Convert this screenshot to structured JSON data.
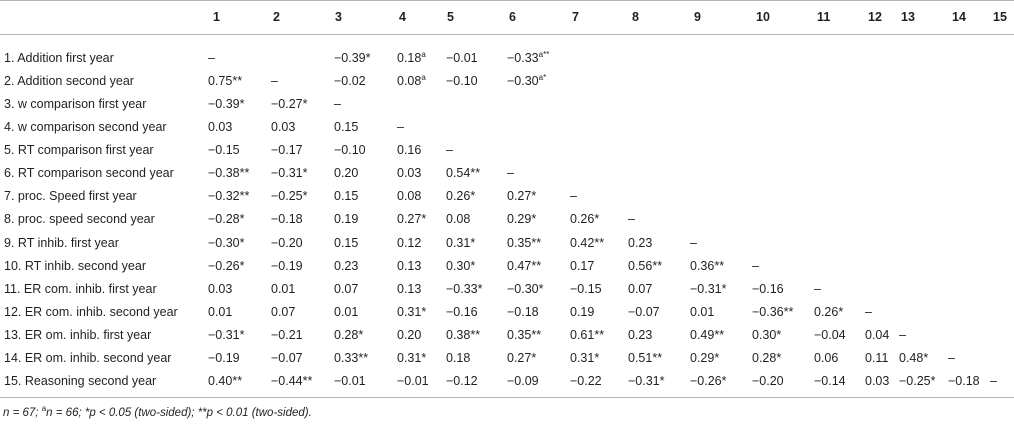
{
  "table": {
    "col_headers": [
      "1",
      "2",
      "3",
      "4",
      "5",
      "6",
      "7",
      "8",
      "9",
      "10",
      "11",
      "12",
      "13",
      "14",
      "15"
    ],
    "rows": [
      {
        "label": "1. Addition first year",
        "cells": [
          [
            "–",
            ""
          ],
          [
            "",
            ""
          ],
          [
            "−0.39*",
            ""
          ],
          [
            "0.18",
            "a"
          ],
          [
            "−0.01",
            ""
          ],
          [
            "−0.33",
            "a**"
          ],
          [
            "",
            ""
          ],
          [
            "",
            ""
          ],
          [
            "",
            ""
          ],
          [
            "",
            ""
          ],
          [
            "",
            ""
          ],
          [
            "",
            ""
          ],
          [
            "",
            ""
          ],
          [
            "",
            ""
          ],
          [
            "",
            ""
          ]
        ]
      },
      {
        "label": "2. Addition second year",
        "cells": [
          [
            "0.75**",
            ""
          ],
          [
            "–",
            ""
          ],
          [
            "−0.02",
            ""
          ],
          [
            "0.08",
            "a"
          ],
          [
            "−0.10",
            ""
          ],
          [
            "−0.30",
            "a*"
          ],
          [
            "",
            ""
          ],
          [
            "",
            ""
          ],
          [
            "",
            ""
          ],
          [
            "",
            ""
          ],
          [
            "",
            ""
          ],
          [
            "",
            ""
          ],
          [
            "",
            ""
          ],
          [
            "",
            ""
          ],
          [
            "",
            ""
          ]
        ]
      },
      {
        "label": "3. w comparison first year",
        "cells": [
          [
            "−0.39*",
            ""
          ],
          [
            "−0.27*",
            ""
          ],
          [
            "–",
            ""
          ],
          [
            "",
            ""
          ],
          [
            "",
            ""
          ],
          [
            "",
            ""
          ],
          [
            "",
            ""
          ],
          [
            "",
            ""
          ],
          [
            "",
            ""
          ],
          [
            "",
            ""
          ],
          [
            "",
            ""
          ],
          [
            "",
            ""
          ],
          [
            "",
            ""
          ],
          [
            "",
            ""
          ],
          [
            "",
            ""
          ]
        ]
      },
      {
        "label": "4. w comparison second year",
        "cells": [
          [
            "0.03",
            ""
          ],
          [
            "0.03",
            ""
          ],
          [
            "0.15",
            ""
          ],
          [
            "–",
            ""
          ],
          [
            "",
            ""
          ],
          [
            "",
            ""
          ],
          [
            "",
            ""
          ],
          [
            "",
            ""
          ],
          [
            "",
            ""
          ],
          [
            "",
            ""
          ],
          [
            "",
            ""
          ],
          [
            "",
            ""
          ],
          [
            "",
            ""
          ],
          [
            "",
            ""
          ],
          [
            "",
            ""
          ]
        ]
      },
      {
        "label": "5. RT comparison first year",
        "cells": [
          [
            "−0.15",
            ""
          ],
          [
            "−0.17",
            ""
          ],
          [
            "−0.10",
            ""
          ],
          [
            "0.16",
            ""
          ],
          [
            "–",
            ""
          ],
          [
            "",
            ""
          ],
          [
            "",
            ""
          ],
          [
            "",
            ""
          ],
          [
            "",
            ""
          ],
          [
            "",
            ""
          ],
          [
            "",
            ""
          ],
          [
            "",
            ""
          ],
          [
            "",
            ""
          ],
          [
            "",
            ""
          ],
          [
            "",
            ""
          ]
        ]
      },
      {
        "label": "6. RT comparison second year",
        "cells": [
          [
            "−0.38**",
            ""
          ],
          [
            "−0.31*",
            ""
          ],
          [
            "0.20",
            ""
          ],
          [
            "0.03",
            ""
          ],
          [
            "0.54**",
            ""
          ],
          [
            "–",
            ""
          ],
          [
            "",
            ""
          ],
          [
            "",
            ""
          ],
          [
            "",
            ""
          ],
          [
            "",
            ""
          ],
          [
            "",
            ""
          ],
          [
            "",
            ""
          ],
          [
            "",
            ""
          ],
          [
            "",
            ""
          ],
          [
            "",
            ""
          ]
        ]
      },
      {
        "label": "7. proc. Speed first year",
        "cells": [
          [
            "−0.32**",
            ""
          ],
          [
            "−0.25*",
            ""
          ],
          [
            "0.15",
            ""
          ],
          [
            "0.08",
            ""
          ],
          [
            "0.26*",
            ""
          ],
          [
            "0.27*",
            ""
          ],
          [
            "–",
            ""
          ],
          [
            "",
            ""
          ],
          [
            "",
            ""
          ],
          [
            "",
            ""
          ],
          [
            "",
            ""
          ],
          [
            "",
            ""
          ],
          [
            "",
            ""
          ],
          [
            "",
            ""
          ],
          [
            "",
            ""
          ]
        ]
      },
      {
        "label": "8. proc. speed second year",
        "cells": [
          [
            "−0.28*",
            ""
          ],
          [
            "−0.18",
            ""
          ],
          [
            "0.19",
            ""
          ],
          [
            "0.27*",
            ""
          ],
          [
            "0.08",
            ""
          ],
          [
            "0.29*",
            ""
          ],
          [
            "0.26*",
            ""
          ],
          [
            "–",
            ""
          ],
          [
            "",
            ""
          ],
          [
            "",
            ""
          ],
          [
            "",
            ""
          ],
          [
            "",
            ""
          ],
          [
            "",
            ""
          ],
          [
            "",
            ""
          ],
          [
            "",
            ""
          ]
        ]
      },
      {
        "label": "9. RT inhib. first year",
        "cells": [
          [
            "−0.30*",
            ""
          ],
          [
            "−0.20",
            ""
          ],
          [
            "0.15",
            ""
          ],
          [
            "0.12",
            ""
          ],
          [
            "0.31*",
            ""
          ],
          [
            "0.35**",
            ""
          ],
          [
            "0.42**",
            ""
          ],
          [
            "0.23",
            ""
          ],
          [
            "–",
            ""
          ],
          [
            "",
            ""
          ],
          [
            "",
            ""
          ],
          [
            "",
            ""
          ],
          [
            "",
            ""
          ],
          [
            "",
            ""
          ],
          [
            "",
            ""
          ]
        ]
      },
      {
        "label": "10. RT inhib. second year",
        "cells": [
          [
            "−0.26*",
            ""
          ],
          [
            "−0.19",
            ""
          ],
          [
            "0.23",
            ""
          ],
          [
            "0.13",
            ""
          ],
          [
            "0.30*",
            ""
          ],
          [
            "0.47**",
            ""
          ],
          [
            "0.17",
            ""
          ],
          [
            "0.56**",
            ""
          ],
          [
            "0.36**",
            ""
          ],
          [
            "–",
            ""
          ],
          [
            "",
            ""
          ],
          [
            "",
            ""
          ],
          [
            "",
            ""
          ],
          [
            "",
            ""
          ],
          [
            "",
            ""
          ]
        ]
      },
      {
        "label": "11. ER com. inhib. first year",
        "cells": [
          [
            "0.03",
            ""
          ],
          [
            "0.01",
            ""
          ],
          [
            "0.07",
            ""
          ],
          [
            "0.13",
            ""
          ],
          [
            "−0.33*",
            ""
          ],
          [
            "−0.30*",
            ""
          ],
          [
            "−0.15",
            ""
          ],
          [
            "0.07",
            ""
          ],
          [
            "−0.31*",
            ""
          ],
          [
            "−0.16",
            ""
          ],
          [
            "–",
            ""
          ],
          [
            "",
            ""
          ],
          [
            "",
            ""
          ],
          [
            "",
            ""
          ],
          [
            "",
            ""
          ]
        ]
      },
      {
        "label": "12. ER com. inhib. second year",
        "cells": [
          [
            "0.01",
            ""
          ],
          [
            "0.07",
            ""
          ],
          [
            "0.01",
            ""
          ],
          [
            "0.31*",
            ""
          ],
          [
            "−0.16",
            ""
          ],
          [
            "−0.18",
            ""
          ],
          [
            "0.19",
            ""
          ],
          [
            "−0.07",
            ""
          ],
          [
            "0.01",
            ""
          ],
          [
            "−0.36**",
            ""
          ],
          [
            "0.26*",
            ""
          ],
          [
            "–",
            ""
          ],
          [
            "",
            ""
          ],
          [
            "",
            ""
          ],
          [
            "",
            ""
          ]
        ]
      },
      {
        "label": "13. ER om. inhib. first year",
        "cells": [
          [
            "−0.31*",
            ""
          ],
          [
            "−0.21",
            ""
          ],
          [
            "0.28*",
            ""
          ],
          [
            "0.20",
            ""
          ],
          [
            "0.38**",
            ""
          ],
          [
            "0.35**",
            ""
          ],
          [
            "0.61**",
            ""
          ],
          [
            "0.23",
            ""
          ],
          [
            "0.49**",
            ""
          ],
          [
            "0.30*",
            ""
          ],
          [
            "−0.04",
            ""
          ],
          [
            "0.04",
            ""
          ],
          [
            "–",
            ""
          ],
          [
            "",
            ""
          ],
          [
            "",
            ""
          ]
        ]
      },
      {
        "label": "14. ER om. inhib. second year",
        "cells": [
          [
            "−0.19",
            ""
          ],
          [
            "−0.07",
            ""
          ],
          [
            "0.33**",
            ""
          ],
          [
            "0.31*",
            ""
          ],
          [
            "0.18",
            ""
          ],
          [
            "0.27*",
            ""
          ],
          [
            "0.31*",
            ""
          ],
          [
            "0.51**",
            ""
          ],
          [
            "0.29*",
            ""
          ],
          [
            "0.28*",
            ""
          ],
          [
            "0.06",
            ""
          ],
          [
            "0.11",
            ""
          ],
          [
            "0.48*",
            ""
          ],
          [
            "–",
            ""
          ],
          [
            "",
            ""
          ]
        ]
      },
      {
        "label": "15. Reasoning second year",
        "cells": [
          [
            "0.40**",
            ""
          ],
          [
            "−0.44**",
            ""
          ],
          [
            "−0.01",
            ""
          ],
          [
            "−0.01",
            ""
          ],
          [
            "−0.12",
            ""
          ],
          [
            "−0.09",
            ""
          ],
          [
            "−0.22",
            ""
          ],
          [
            "−0.31*",
            ""
          ],
          [
            "−0.26*",
            ""
          ],
          [
            "−0.20",
            ""
          ],
          [
            "−0.14",
            ""
          ],
          [
            "0.03",
            ""
          ],
          [
            "−0.25*",
            ""
          ],
          [
            "−0.18",
            ""
          ],
          [
            "–",
            ""
          ]
        ]
      }
    ]
  },
  "footnote": {
    "n": "n",
    "n_text": " = 67; ",
    "a_sup": "a",
    "a_text": "n",
    "a_text2": " = 66; ",
    "p05": "*p < 0.05 (two-sided); ",
    "p01": "**p < 0.01 (two-sided)."
  }
}
